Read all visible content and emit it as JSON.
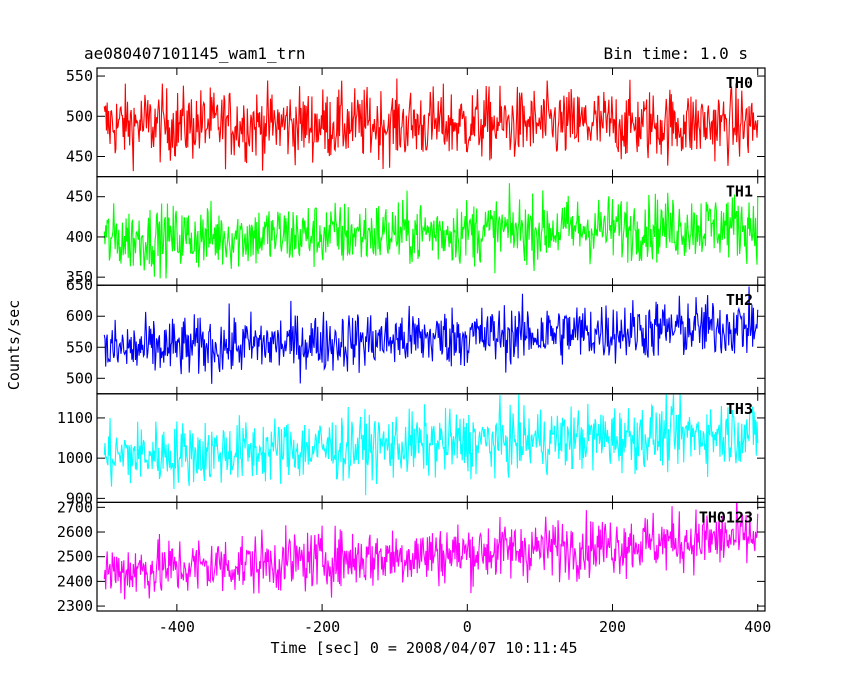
{
  "header": {
    "title": "ae080407101145_wam1_trn",
    "bin_time": "Bin time: 1.0 s"
  },
  "axes": {
    "ylabel": "Counts/sec",
    "xlabel": "Time [sec] 0 = 2008/04/07 10:11:45"
  },
  "chart_data": {
    "type": "line",
    "x": {
      "range": [
        -510,
        410
      ],
      "ticks": [
        -400,
        -200,
        0,
        200,
        400
      ],
      "sample_step": 1.0
    },
    "panels": [
      {
        "name": "TH0",
        "color": "#ff0000",
        "ylim": [
          425,
          560
        ],
        "yticks": [
          450,
          500,
          550
        ],
        "trend_start": 490,
        "trend_end": 490,
        "noise": 22
      },
      {
        "name": "TH1",
        "color": "#00ff00",
        "ylim": [
          340,
          475
        ],
        "yticks": [
          350,
          400,
          450
        ],
        "trend_start": 397,
        "trend_end": 415,
        "noise": 20
      },
      {
        "name": "TH2",
        "color": "#0000ff",
        "ylim": [
          475,
          650
        ],
        "yticks": [
          500,
          550,
          600,
          650
        ],
        "trend_start": 545,
        "trend_end": 585,
        "noise": 24
      },
      {
        "name": "TH3",
        "color": "#00ffff",
        "ylim": [
          890,
          1160
        ],
        "yticks": [
          900,
          1000,
          1100
        ],
        "trend_start": 1005,
        "trend_end": 1065,
        "noise": 40
      },
      {
        "name": "TH0123",
        "color": "#ff00ff",
        "ylim": [
          2280,
          2720
        ],
        "yticks": [
          2300,
          2400,
          2500,
          2600,
          2700
        ],
        "trend_start": 2440,
        "trend_end": 2580,
        "noise": 60
      }
    ]
  }
}
